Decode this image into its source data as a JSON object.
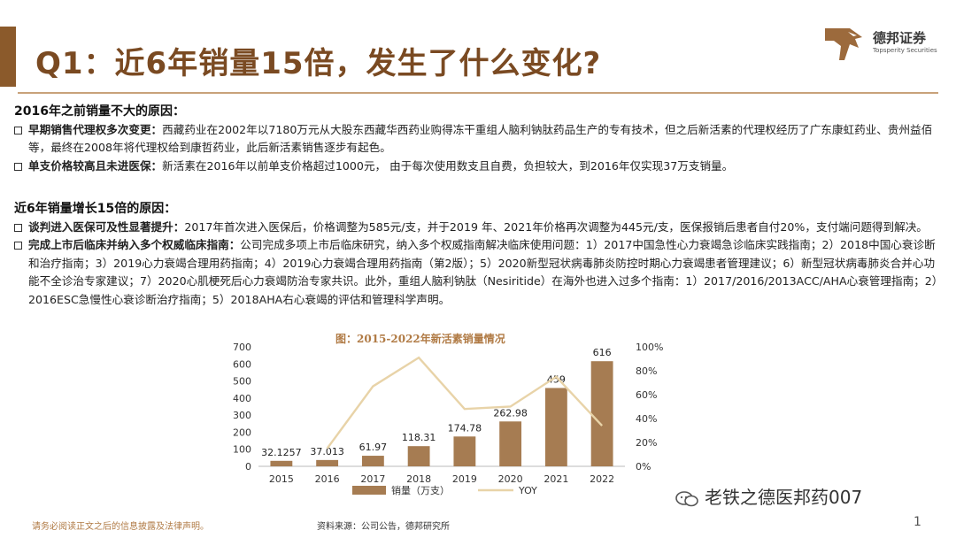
{
  "header": {
    "title": "Q1：近6年销量15倍，发生了什么变化?",
    "logo_cn": "德邦证券",
    "logo_en": "Topsperity Securities"
  },
  "section1": {
    "heading": "2016年之前销量不大的原因：",
    "b1_key": "早期销售代理权多次变更：",
    "b1_text": "西藏药业在2002年以7180万元从大股东西藏华西药业购得冻干重组人脑利钠肽药品生产的专有技术，但之后新活素的代理权经历了广东康虹药业、贵州益佰等，最终在2008年将代理权给到康哲药业，此后新活素销售逐步有起色。",
    "b2_key": "单支价格较高且未进医保：",
    "b2_text": "新活素在2016年以前单支价格超过1000元， 由于每次使用数支且自费，负担较大，到2016年仅实现37万支销量。"
  },
  "section2": {
    "heading": "近6年销量增长15倍的原因：",
    "b1_key": "谈判进入医保可及性显著提升：",
    "b1_text": "2017年首次进入医保后，价格调整为585元/支，并于2019 年、2021年价格再次调整为445元/支，医保报销后患者自付20%，支付端问题得到解决。",
    "b2_key": "完成上市后临床并纳入多个权威临床指南：",
    "b2_text": "公司完成多项上市后临床研究，纳入多个权威指南解决临床使用问题：1）2017中国急性心力衰竭急诊临床实践指南；2）2018中国心衰诊断和治疗指南；3）2019心力衰竭合理用药指南；4）2019心力衰竭合理用药指南（第2版）；5）2020新型冠状病毒肺炎防控时期心力衰竭患者管理建议；6）新型冠状病毒肺炎合并心功能不全诊治专家建议；7）2020心肌梗死后心力衰竭防治专家共识。此外，重组人脑利钠肽（Nesiritide）在海外也进入过多个指南：1）2017/2016/2013ACC/AHA心衰管理指南；2）2016ESC急慢性心衰诊断治疗指南；5）2018AHA右心衰竭的评估和管理科学声明。"
  },
  "chart_data": {
    "type": "bar",
    "title": "图：2015-2022年新活素销量情况",
    "categories": [
      "2015",
      "2016",
      "2017",
      "2018",
      "2019",
      "2020",
      "2021",
      "2022"
    ],
    "series": [
      {
        "name": "销量（万支）",
        "type": "bar",
        "axis": "left",
        "values": [
          32.1257,
          37.013,
          61.97,
          118.31,
          174.78,
          262.98,
          459,
          616
        ],
        "labels": [
          "32.1257",
          "37.013",
          "61.97",
          "118.31",
          "174.78",
          "262.98",
          "459",
          "616"
        ],
        "color": "#a67c52"
      },
      {
        "name": "YOY",
        "type": "line",
        "axis": "right",
        "values": [
          null,
          0.15,
          0.67,
          0.91,
          0.48,
          0.5,
          0.75,
          0.34
        ],
        "color": "#e8d3a8"
      }
    ],
    "ylim": [
      0,
      700
    ],
    "yticks": [
      0,
      100,
      200,
      300,
      400,
      500,
      600,
      700
    ],
    "y2lim": [
      0,
      1
    ],
    "y2ticks": [
      "0%",
      "20%",
      "40%",
      "60%",
      "80%",
      "100%"
    ],
    "legend": "bottom"
  },
  "footer": {
    "disclaimer": "请务必阅读正文之后的信息披露及法律声明。",
    "source": "资料来源：公司公告，德邦研究所",
    "page": "1",
    "watermark": "老铁之德医邦药007"
  }
}
